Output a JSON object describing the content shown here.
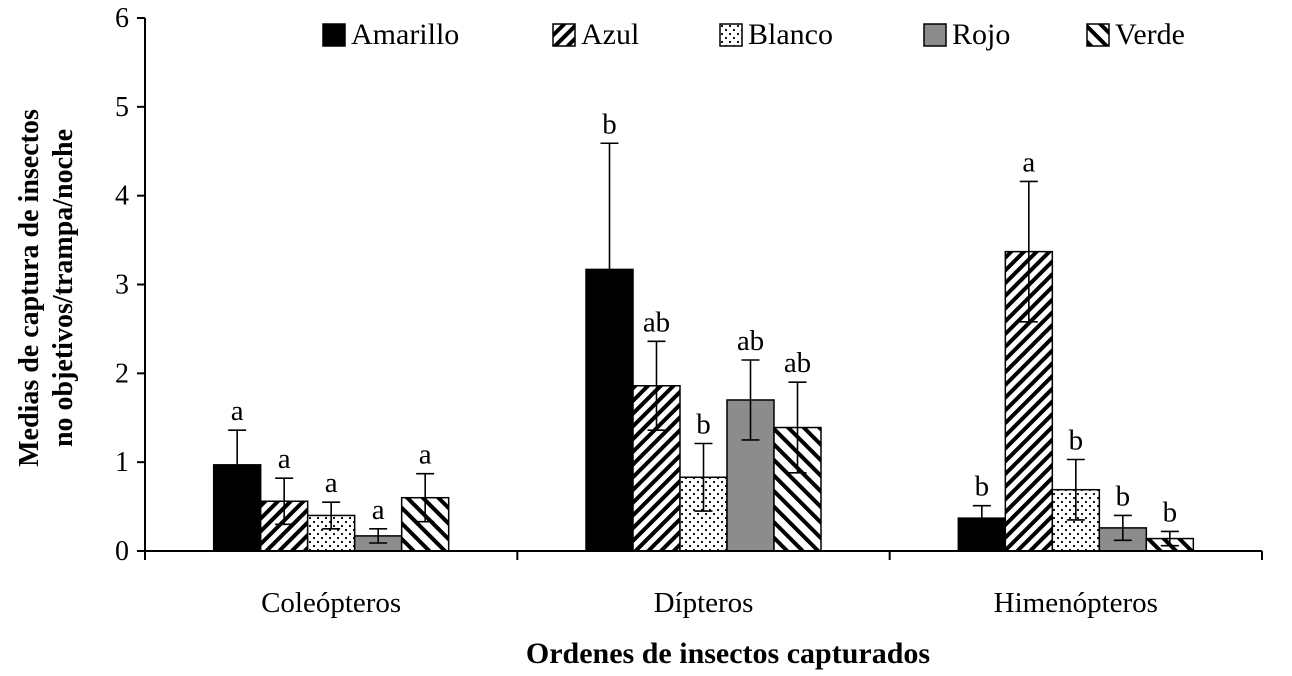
{
  "chart_data": {
    "type": "bar",
    "xlabel": "Ordenes de insectos capturados",
    "ylabel": [
      "Medias de captura de insectos",
      "no objetivos/trampa/noche"
    ],
    "categories": [
      "Coleópteros",
      "Dípteros",
      "Himenópteros"
    ],
    "ylim": [
      0,
      6
    ],
    "yticks": [
      "0",
      "1",
      "2",
      "3",
      "4",
      "5",
      "6"
    ],
    "legend_position": "top",
    "grid": false,
    "series": [
      {
        "name": "Amarillo",
        "pattern": "solid-black",
        "values": [
          0.97,
          3.17,
          0.37
        ],
        "errors": [
          0.39,
          1.42,
          0.14
        ],
        "letters": [
          "a",
          "b",
          "b"
        ]
      },
      {
        "name": "Azul",
        "pattern": "diagonal-hatch",
        "values": [
          0.56,
          1.86,
          3.37
        ],
        "errors": [
          0.26,
          0.5,
          0.79
        ],
        "letters": [
          "a",
          "ab",
          "a"
        ]
      },
      {
        "name": "Blanco",
        "pattern": "dotted-white",
        "values": [
          0.4,
          0.83,
          0.69
        ],
        "errors": [
          0.15,
          0.38,
          0.34
        ],
        "letters": [
          "a",
          "b",
          "b"
        ]
      },
      {
        "name": "Rojo",
        "pattern": "solid-gray",
        "values": [
          0.17,
          1.7,
          0.26
        ],
        "errors": [
          0.08,
          0.45,
          0.14
        ],
        "letters": [
          "a",
          "ab",
          "b"
        ]
      },
      {
        "name": "Verde",
        "pattern": "wide-diagonal-hatch",
        "values": [
          0.6,
          1.39,
          0.14
        ],
        "errors": [
          0.27,
          0.51,
          0.08
        ],
        "letters": [
          "a",
          "ab",
          "b"
        ]
      }
    ],
    "colors": {
      "solid_black": "#000000",
      "solid_gray": "#8c8c8c",
      "white": "#ffffff"
    }
  }
}
